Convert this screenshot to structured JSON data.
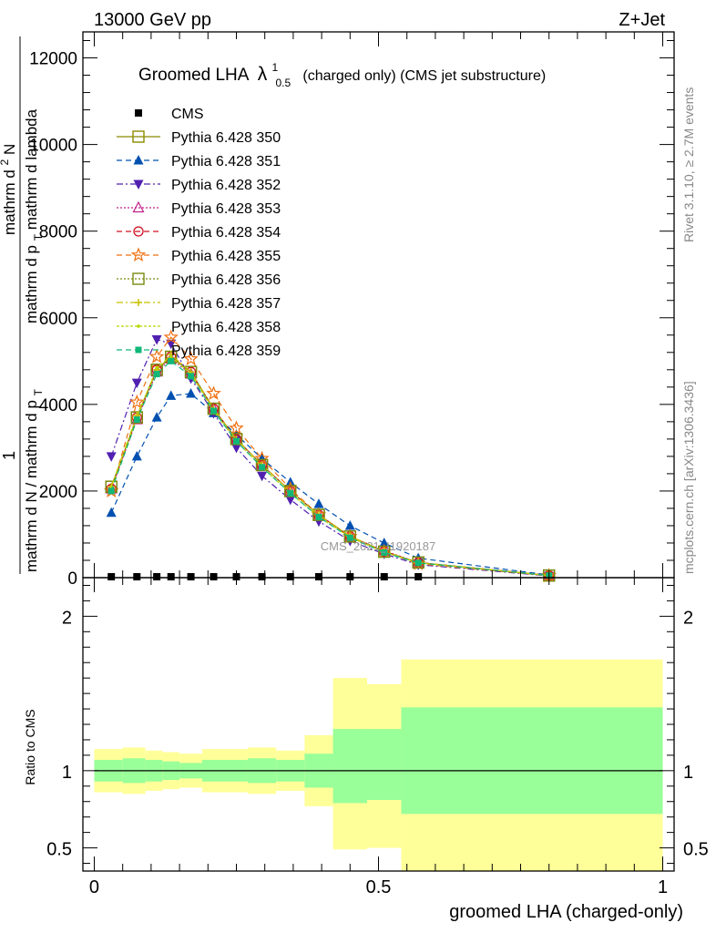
{
  "header": {
    "energy_label": "13000 GeV pp",
    "process_label": "Z+Jet",
    "title_main": "Groomed LHA",
    "title_lambda": "λ",
    "title_sup": "1",
    "title_sub": "0.5",
    "title_rest": "(charged only) (CMS jet substructure)",
    "watermark": "CMS_2021_I1920187"
  },
  "side_labels": {
    "rivet": "Rivet 3.1.10, ≥ 2.7M events",
    "mcplots": "mcplots.cern.ch [arXiv:1306.3436]"
  },
  "axis_labels": {
    "ylabel_main_1": "1",
    "ylabel_main_den": "mathrm d N / mathrm d p",
    "ylabel_main_den_sub": "T",
    "ylabel_main_num": "mathrm d",
    "ylabel_main_num_sup": "2",
    "ylabel_main_num_rest": "N",
    "ylabel_main_den2": "mathrm d p",
    "ylabel_main_den2_sub": "T",
    "ylabel_main_den2_rest": "mathrm d lambda",
    "ylabel_ratio": "Ratio to CMS",
    "xlabel": "groomed LHA (charged-only)"
  },
  "colors": {
    "s350": "#8b8b00",
    "s351": "#0050b0",
    "s352": "#5020b0",
    "s353": "#c0208a",
    "s354": "#d01020",
    "s355": "#f07010",
    "s356": "#7a8a10",
    "s357": "#c8c000",
    "s358": "#b8d800",
    "s359": "#10b878",
    "band_inner": "#99ff99",
    "band_outer": "#ffff99"
  },
  "legend": [
    {
      "key": "cms",
      "label": "CMS",
      "marker": "sq-filled",
      "dash": "none",
      "color": "#000000"
    },
    {
      "key": "s350",
      "label": "Pythia 6.428 350",
      "marker": "sq-open",
      "dash": "none"
    },
    {
      "key": "s351",
      "label": "Pythia 6.428 351",
      "marker": "tri-up-filled",
      "dash": "6,4"
    },
    {
      "key": "s352",
      "label": "Pythia 6.428 352",
      "marker": "tri-down-filled",
      "dash": "7,3,2,3"
    },
    {
      "key": "s353",
      "label": "Pythia 6.428 353",
      "marker": "tri-up-open",
      "dash": "2,2"
    },
    {
      "key": "s354",
      "label": "Pythia 6.428 354",
      "marker": "circle-open",
      "dash": "6,4"
    },
    {
      "key": "s355",
      "label": "Pythia 6.428 355",
      "marker": "star-open",
      "dash": "6,4"
    },
    {
      "key": "s356",
      "label": "Pythia 6.428 356",
      "marker": "sq-open",
      "dash": "2,2"
    },
    {
      "key": "s357",
      "label": "Pythia 6.428 357",
      "marker": "cross",
      "dash": "7,3,2,3"
    },
    {
      "key": "s358",
      "label": "Pythia 6.428 358",
      "marker": "dot",
      "dash": "3,2"
    },
    {
      "key": "s359",
      "label": "Pythia 6.428 359",
      "marker": "sq-filled-small",
      "dash": "6,4"
    }
  ],
  "chart_data": [
    {
      "type": "scatter",
      "title": "Groomed LHA λ^1_0.5 (charged only) (CMS jet substructure)",
      "xlim": [
        -0.02,
        1.02
      ],
      "ylim": [
        0,
        12600
      ],
      "yticks": [
        0,
        2000,
        4000,
        6000,
        8000,
        10000,
        12000
      ],
      "ytick_labels": [
        "0",
        "2000",
        "4000",
        "6000",
        "8000",
        "10000",
        "12000"
      ],
      "x": [
        0.03,
        0.075,
        0.11,
        0.135,
        0.17,
        0.21,
        0.25,
        0.295,
        0.345,
        0.395,
        0.45,
        0.51,
        0.57,
        0.8
      ],
      "series": [
        {
          "name": "CMS",
          "key": "cms",
          "values": [
            0,
            0,
            0,
            0,
            0,
            0,
            0,
            0,
            0,
            0,
            0,
            0,
            0
          ]
        },
        {
          "name": "Pythia 6.428 350",
          "key": "s350",
          "values": [
            2100,
            3700,
            4800,
            5100,
            4750,
            3900,
            3200,
            2600,
            2000,
            1450,
            950,
            600,
            350,
            50
          ]
        },
        {
          "name": "Pythia 6.428 351",
          "key": "s351",
          "values": [
            1500,
            2800,
            3700,
            4200,
            4250,
            3800,
            3300,
            2750,
            2200,
            1700,
            1200,
            800,
            450,
            60
          ]
        },
        {
          "name": "Pythia 6.428 352",
          "key": "s352",
          "values": [
            2800,
            4500,
            5500,
            5400,
            4600,
            3800,
            3000,
            2350,
            1800,
            1300,
            850,
            550,
            300,
            40
          ]
        },
        {
          "name": "Pythia 6.428 353",
          "key": "s353",
          "values": [
            2050,
            3650,
            4750,
            5050,
            4700,
            3900,
            3200,
            2600,
            2000,
            1450,
            950,
            620,
            350,
            50
          ]
        },
        {
          "name": "Pythia 6.428 354",
          "key": "s354",
          "values": [
            2050,
            3700,
            4800,
            5100,
            4750,
            3900,
            3200,
            2600,
            2000,
            1450,
            950,
            610,
            350,
            50
          ]
        },
        {
          "name": "Pythia 6.428 355",
          "key": "s355",
          "values": [
            2000,
            4050,
            5100,
            5550,
            5050,
            4250,
            3450,
            2750,
            2050,
            1450,
            950,
            600,
            320,
            45
          ]
        },
        {
          "name": "Pythia 6.428 356",
          "key": "s356",
          "values": [
            2100,
            3700,
            4800,
            5100,
            4750,
            3900,
            3200,
            2600,
            2000,
            1450,
            950,
            600,
            350,
            50
          ]
        },
        {
          "name": "Pythia 6.428 357",
          "key": "s357",
          "values": [
            2100,
            3750,
            4800,
            5150,
            4750,
            3900,
            3200,
            2600,
            2000,
            1450,
            960,
            610,
            350,
            50
          ]
        },
        {
          "name": "Pythia 6.428 358",
          "key": "s358",
          "values": [
            2100,
            3700,
            4850,
            5100,
            4700,
            3850,
            3150,
            2550,
            1950,
            1400,
            930,
            590,
            340,
            50
          ]
        },
        {
          "name": "Pythia 6.428 359",
          "key": "s359",
          "values": [
            2000,
            3650,
            4700,
            5000,
            4650,
            3850,
            3150,
            2550,
            1950,
            1400,
            920,
            580,
            340,
            50
          ]
        }
      ],
      "cms_x": [
        0.03,
        0.075,
        0.11,
        0.135,
        0.17,
        0.21,
        0.25,
        0.295,
        0.345,
        0.395,
        0.45,
        0.51,
        0.57
      ]
    },
    {
      "type": "area",
      "ylabel": "Ratio to CMS",
      "xlabel": "groomed LHA (charged-only)",
      "xlim": [
        -0.02,
        1.02
      ],
      "ylim": [
        0.35,
        2.25
      ],
      "xticks": [
        0,
        0.5,
        1
      ],
      "xtick_labels": [
        "0",
        "0.5",
        "1"
      ],
      "yticks": [
        0.5,
        1,
        2
      ],
      "ytick_labels": [
        "0.5",
        "1",
        "2"
      ],
      "reference_line": 1.0,
      "bins": [
        {
          "x0": 0.0,
          "x1": 0.05,
          "inner": [
            0.93,
            1.07
          ],
          "outer": [
            0.86,
            1.14
          ]
        },
        {
          "x0": 0.05,
          "x1": 0.09,
          "inner": [
            0.92,
            1.08
          ],
          "outer": [
            0.85,
            1.15
          ]
        },
        {
          "x0": 0.09,
          "x1": 0.12,
          "inner": [
            0.93,
            1.07
          ],
          "outer": [
            0.87,
            1.13
          ]
        },
        {
          "x0": 0.12,
          "x1": 0.15,
          "inner": [
            0.94,
            1.06
          ],
          "outer": [
            0.88,
            1.12
          ]
        },
        {
          "x0": 0.15,
          "x1": 0.19,
          "inner": [
            0.95,
            1.05
          ],
          "outer": [
            0.89,
            1.11
          ]
        },
        {
          "x0": 0.19,
          "x1": 0.23,
          "inner": [
            0.93,
            1.07
          ],
          "outer": [
            0.86,
            1.14
          ]
        },
        {
          "x0": 0.23,
          "x1": 0.27,
          "inner": [
            0.93,
            1.07
          ],
          "outer": [
            0.86,
            1.14
          ]
        },
        {
          "x0": 0.27,
          "x1": 0.32,
          "inner": [
            0.92,
            1.08
          ],
          "outer": [
            0.85,
            1.15
          ]
        },
        {
          "x0": 0.32,
          "x1": 0.37,
          "inner": [
            0.93,
            1.07
          ],
          "outer": [
            0.87,
            1.13
          ]
        },
        {
          "x0": 0.37,
          "x1": 0.42,
          "inner": [
            0.89,
            1.11
          ],
          "outer": [
            0.77,
            1.23
          ]
        },
        {
          "x0": 0.42,
          "x1": 0.48,
          "inner": [
            0.79,
            1.27
          ],
          "outer": [
            0.49,
            1.6
          ]
        },
        {
          "x0": 0.48,
          "x1": 0.54,
          "inner": [
            0.81,
            1.27
          ],
          "outer": [
            0.5,
            1.56
          ]
        },
        {
          "x0": 0.54,
          "x1": 1.0,
          "inner": [
            0.72,
            1.41
          ],
          "outer": [
            0.35,
            1.72
          ]
        }
      ]
    }
  ]
}
